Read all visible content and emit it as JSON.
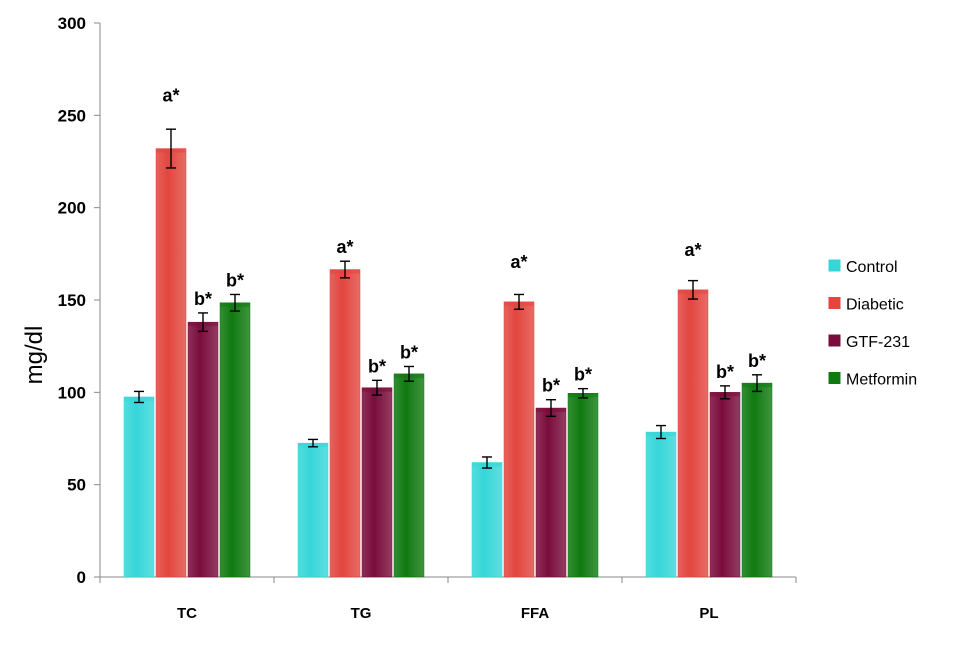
{
  "chart_data": {
    "type": "bar",
    "title": "",
    "xlabel": "",
    "ylabel": "mg/dl",
    "ylim": [
      0,
      300
    ],
    "yticks": [
      0,
      50,
      100,
      150,
      200,
      250,
      300
    ],
    "categories": [
      "TC",
      "TG",
      "FFA",
      "PL"
    ],
    "legend_position": "right",
    "grid": false,
    "series": [
      {
        "name": "Control",
        "color": "#36d6d8",
        "values": [
          97.5,
          72.5,
          62,
          78.5
        ],
        "errors": [
          3,
          2,
          3,
          3.5
        ],
        "labels": [
          "",
          "",
          "",
          ""
        ]
      },
      {
        "name": "Diabetic",
        "color": "#e2463f",
        "values": [
          232,
          166.5,
          149,
          155.5
        ],
        "errors": [
          10.5,
          4.5,
          4,
          5
        ],
        "labels": [
          "a*",
          "a*",
          "a*",
          "a*"
        ]
      },
      {
        "name": "GTF-231",
        "color": "#7a0c3c",
        "values": [
          138,
          102.5,
          91.5,
          100
        ],
        "errors": [
          5,
          4,
          4.5,
          3.5
        ],
        "labels": [
          "b*",
          "b*",
          "b*",
          "b*"
        ]
      },
      {
        "name": "Metformin",
        "color": "#107a10",
        "values": [
          148.5,
          110,
          99.5,
          105
        ],
        "errors": [
          4.5,
          4,
          2.5,
          4.5
        ],
        "labels": [
          "b*",
          "b*",
          "b*",
          "b*"
        ]
      }
    ]
  }
}
